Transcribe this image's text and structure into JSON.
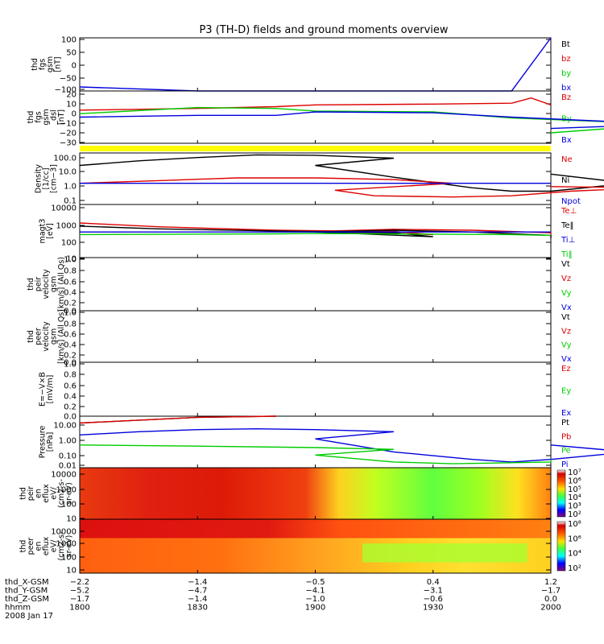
{
  "title": "P3 (TH-D) fields and ground moments overview",
  "colors": {
    "black": "#000000",
    "red": "#dd0000",
    "green": "#00cc00",
    "blue": "#0000dd",
    "yellow": "#ffff00"
  },
  "chart_data": [
    {
      "type": "line",
      "ylabel": [
        "thd",
        "fgs",
        "gsm",
        "[nT]"
      ],
      "yticks": [
        "100",
        "50",
        "0",
        "−50",
        "−100"
      ],
      "ylim": [
        -100,
        100
      ],
      "legend": [
        {
          "label": "Bt",
          "color": "#000000"
        },
        {
          "label": "bz",
          "color": "#dd0000"
        },
        {
          "label": "by",
          "color": "#00cc00"
        },
        {
          "label": "bx",
          "color": "#0000dd"
        }
      ],
      "series": [
        {
          "name": "bx",
          "color": "#0000dd",
          "x": [
            1800,
            1830,
            1850,
            1920,
            1940,
            1950,
            2000
          ],
          "y": [
            -85,
            -100,
            -100,
            -100,
            -100,
            -100,
            100
          ]
        }
      ]
    },
    {
      "type": "line",
      "ylabel": [
        "thd",
        "fgs",
        "gsm",
        "_dsl",
        "[nT]"
      ],
      "yticks": [
        "20",
        "10",
        "0",
        "−10",
        "−20",
        "−30"
      ],
      "ylim": [
        -32,
        28
      ],
      "legend": [
        {
          "label": "Bz",
          "color": "#dd0000"
        },
        {
          "label": "By",
          "color": "#00cc00"
        },
        {
          "label": "Bx",
          "color": "#0000dd"
        }
      ],
      "series": [
        {
          "name": "Bz",
          "color": "#dd0000",
          "x": [
            1800,
            1830,
            1850,
            1900,
            1930,
            1950,
            1955,
            2000
          ],
          "y": [
            6,
            8,
            10,
            12,
            13,
            14,
            20,
            12
          ]
        },
        {
          "name": "By",
          "color": "#00cc00",
          "x": [
            1800,
            1830,
            1850,
            1900,
            1930,
            1950,
            1990,
            2000
          ],
          "y": [
            2,
            9,
            8,
            5,
            4,
            -3,
            -10,
            -20
          ]
        },
        {
          "name": "Bx",
          "color": "#0000dd",
          "x": [
            1800,
            1830,
            1850,
            1900,
            1930,
            1950,
            1990,
            2000
          ],
          "y": [
            -2,
            0,
            0,
            4,
            3,
            -2,
            -10,
            -15
          ]
        }
      ]
    },
    {
      "type": "line",
      "ylabel": [
        "Density",
        "[1/cc]",
        "[cm−3]"
      ],
      "yticks": [
        "100.0",
        "10.0",
        "1.0",
        "0.1"
      ],
      "log": true,
      "ylim": [
        0.08,
        200
      ],
      "legend": [
        {
          "label": "Ne",
          "color": "#dd0000"
        },
        {
          "label": "Ni",
          "color": "#000000"
        },
        {
          "label": "Npot",
          "color": "#0000dd"
        }
      ],
      "series": [
        {
          "name": "Ni",
          "color": "#000000",
          "x": [
            1800,
            1815,
            1830,
            1845,
            1860,
            1880,
            1900,
            1920,
            1940,
            1950,
            1960,
            1980,
            2000
          ],
          "y": [
            30,
            60,
            100,
            150,
            140,
            90,
            30,
            5,
            1,
            0.6,
            0.6,
            2,
            8
          ]
        },
        {
          "name": "Ne",
          "color": "#dd0000",
          "x": [
            1800,
            1820,
            1840,
            1860,
            1880,
            1895,
            1905,
            1915,
            1935,
            1950,
            1965,
            1985,
            2000
          ],
          "y": [
            2,
            3,
            4.5,
            4.5,
            3.5,
            2,
            0.7,
            0.3,
            0.25,
            0.3,
            0.6,
            1,
            1.2
          ]
        },
        {
          "name": "Npot",
          "color": "#0000dd",
          "x": [
            1800,
            1900,
            2000
          ],
          "y": [
            2,
            2,
            2
          ]
        }
      ]
    },
    {
      "type": "line",
      "ylabel": [
        "magt3",
        "[eV]"
      ],
      "yticks": [
        "10000",
        "1000",
        "100",
        "10"
      ],
      "log": true,
      "ylim": [
        10,
        10000
      ],
      "legend": [
        {
          "label": "Te⊥",
          "color": "#dd0000"
        },
        {
          "label": "Te‖",
          "color": "#000000"
        },
        {
          "label": "Ti⊥",
          "color": "#0000dd"
        },
        {
          "label": "Ti‖",
          "color": "#00cc00"
        }
      ],
      "series": [
        {
          "name": "Te⊥",
          "color": "#dd0000",
          "x": [
            1800,
            1820,
            1850,
            1880,
            1890,
            1900,
            1920,
            1940,
            1960,
            2000
          ],
          "y": [
            900,
            550,
            350,
            300,
            200,
            300,
            400,
            350,
            250,
            150
          ]
        },
        {
          "name": "Te‖",
          "color": "#000000",
          "x": [
            1800,
            1820,
            1850,
            1880,
            1890,
            1900,
            1920,
            1940,
            1960,
            2000
          ],
          "y": [
            600,
            420,
            320,
            250,
            150,
            280,
            350,
            280,
            180,
            120
          ]
        },
        {
          "name": "Ti⊥",
          "color": "#0000dd",
          "x": [
            1800,
            1900,
            1950,
            2000
          ],
          "y": [
            280,
            280,
            280,
            280
          ]
        },
        {
          "name": "Ti‖",
          "color": "#00cc00",
          "x": [
            1800,
            1850,
            1900,
            1950,
            2000
          ],
          "y": [
            200,
            220,
            230,
            200,
            180
          ]
        }
      ]
    },
    {
      "type": "line",
      "ylabel": [
        "thd",
        "peir",
        "velocity",
        "gsm",
        "[km/s] (All Qs)"
      ],
      "yticks": [
        "1.0",
        "0.8",
        "0.6",
        "0.4",
        "0.2",
        "0.0"
      ],
      "ylim": [
        0,
        1
      ],
      "legend": [
        {
          "label": "Vt",
          "color": "#000000"
        },
        {
          "label": "Vz",
          "color": "#dd0000"
        },
        {
          "label": "Vy",
          "color": "#00cc00"
        },
        {
          "label": "Vx",
          "color": "#0000dd"
        }
      ],
      "series": []
    },
    {
      "type": "line",
      "ylabel": [
        "thd",
        "peer",
        "velocity",
        "gsm",
        "[km/s] (All Qs)"
      ],
      "yticks": [
        "1.0",
        "0.8",
        "0.6",
        "0.4",
        "0.2",
        "0.0"
      ],
      "ylim": [
        0,
        1
      ],
      "legend": [
        {
          "label": "Vt",
          "color": "#000000"
        },
        {
          "label": "Vz",
          "color": "#dd0000"
        },
        {
          "label": "Vy",
          "color": "#00cc00"
        },
        {
          "label": "Vx",
          "color": "#0000dd"
        }
      ],
      "series": []
    },
    {
      "type": "line",
      "ylabel": [
        "E=−V×B",
        "[mV/m]"
      ],
      "yticks": [
        "1.0",
        "0.8",
        "0.6",
        "0.4",
        "0.2",
        "0.0"
      ],
      "ylim": [
        0,
        1
      ],
      "legend": [
        {
          "label": "Ez",
          "color": "#dd0000"
        },
        {
          "label": "Ey",
          "color": "#00cc00"
        },
        {
          "label": "Ex",
          "color": "#0000dd"
        }
      ],
      "series": []
    },
    {
      "type": "line",
      "ylabel": [
        "Pressure",
        "[nPa]"
      ],
      "yticks": [
        "10.00",
        "1.00",
        "0.10",
        "0.01"
      ],
      "log": true,
      "ylim": [
        0.008,
        30
      ],
      "legend": [
        {
          "label": "Pt",
          "color": "#000000"
        },
        {
          "label": "Pb",
          "color": "#dd0000"
        },
        {
          "label": "Pe",
          "color": "#00cc00"
        },
        {
          "label": "Pi",
          "color": "#0000dd"
        }
      ],
      "series": [
        {
          "name": "Pt",
          "color": "#000000",
          "x": [
            1800,
            1830,
            1850
          ],
          "y": [
            10,
            25,
            45
          ]
        },
        {
          "name": "Pb",
          "color": "#dd0000",
          "x": [
            1800,
            1830,
            1850
          ],
          "y": [
            10,
            25,
            45
          ]
        },
        {
          "name": "Pi",
          "color": "#0000dd",
          "x": [
            1800,
            1815,
            1830,
            1845,
            1860,
            1880,
            1900,
            1920,
            1940,
            1950,
            1960,
            1980,
            2000
          ],
          "y": [
            1.5,
            2.5,
            3.5,
            4,
            3.5,
            2.5,
            0.8,
            0.1,
            0.03,
            0.02,
            0.03,
            0.1,
            0.3
          ]
        },
        {
          "name": "Pe",
          "color": "#00cc00",
          "x": [
            1800,
            1830,
            1860,
            1880,
            1900,
            1920,
            1935,
            1960,
            2000
          ],
          "y": [
            0.3,
            0.25,
            0.2,
            0.15,
            0.06,
            0.02,
            0.015,
            0.02,
            0.03
          ]
        }
      ]
    },
    {
      "type": "heatmap",
      "ylabel": [
        "thd",
        "peir",
        "en",
        "eflux",
        "eV/",
        "(cm2-s-",
        "sr-eV)"
      ],
      "yticks": [
        "10000",
        "1000",
        "100",
        "10"
      ],
      "colorbar_ticks": [
        "10⁷",
        "10⁶",
        "10⁵",
        "10⁴",
        "10³",
        "10²"
      ]
    },
    {
      "type": "heatmap",
      "ylabel": [
        "thd",
        "peer",
        "en",
        "eflux",
        "eV/",
        "(cm2-s-",
        "sr-eV)"
      ],
      "yticks": [
        "10000",
        "1000",
        "100",
        "10"
      ],
      "colorbar_ticks": [
        "10⁸",
        "10⁶",
        "10⁴",
        "10²"
      ]
    }
  ],
  "xaxis": {
    "rows": [
      {
        "label": "thd_X-GSM",
        "values": [
          "−2.2",
          "−1.4",
          "−0.5",
          "0.4",
          "1.2"
        ]
      },
      {
        "label": "thd_Y-GSM",
        "values": [
          "−5.2",
          "−4.7",
          "−4.1",
          "−3.1",
          "−1.7"
        ]
      },
      {
        "label": "thd_Z-GSM",
        "values": [
          "−1.7",
          "−1.4",
          "−1.0",
          "−0.6",
          "0.0"
        ]
      },
      {
        "label": "hhmm",
        "values": [
          "1800",
          "1830",
          "1900",
          "1930",
          "2000"
        ]
      }
    ],
    "date": "2008 Jan 17",
    "tick_times": [
      1800,
      1830,
      1900,
      1930,
      2000
    ]
  }
}
